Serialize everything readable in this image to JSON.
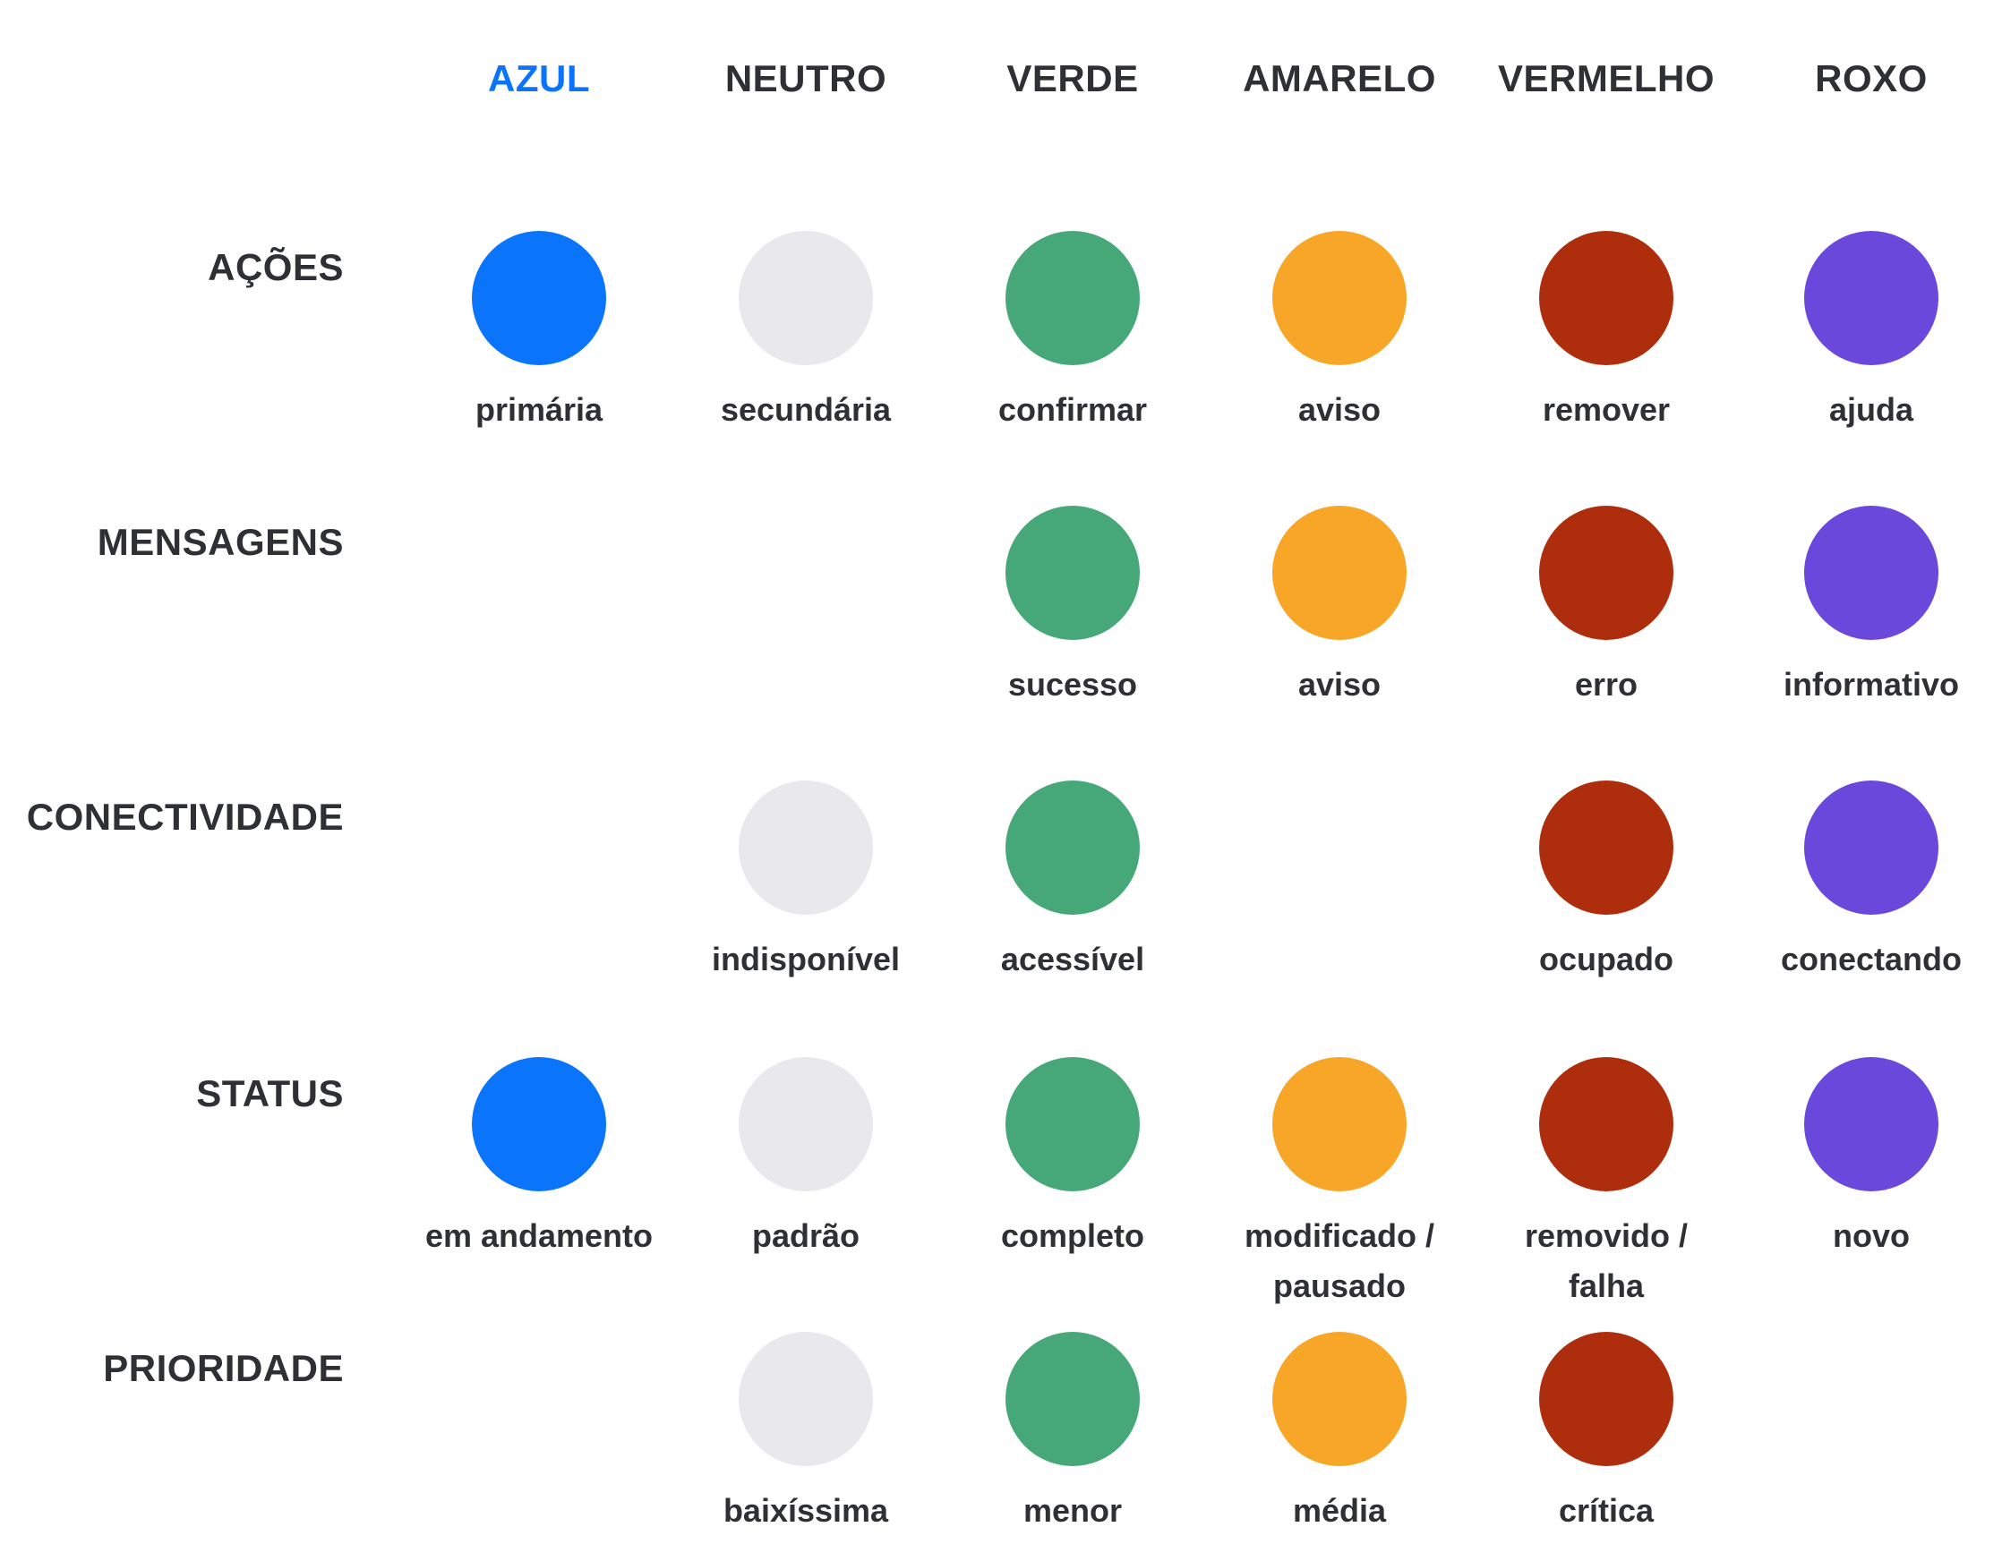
{
  "colors": {
    "azul": "#0a74fa",
    "neutro": "#e9e9ed",
    "verde": "#46a878",
    "amarelo": "#f8a628",
    "vermelho": "#ae2d0d",
    "roxo": "#6b48dc",
    "text": "#2e3033",
    "highlight": "#0a74fa"
  },
  "columns": [
    {
      "key": "azul",
      "label": "AZUL",
      "highlight": true
    },
    {
      "key": "neutro",
      "label": "NEUTRO",
      "highlight": false
    },
    {
      "key": "verde",
      "label": "VERDE",
      "highlight": false
    },
    {
      "key": "amarelo",
      "label": "AMARELO",
      "highlight": false
    },
    {
      "key": "vermelho",
      "label": "VERMELHO",
      "highlight": false
    },
    {
      "key": "roxo",
      "label": "ROXO",
      "highlight": false
    }
  ],
  "rows": [
    {
      "key": "acoes",
      "label": "AÇÕES",
      "cells": {
        "azul": "primária",
        "neutro": "secundária",
        "verde": "confirmar",
        "amarelo": "aviso",
        "vermelho": "remover",
        "roxo": "ajuda"
      }
    },
    {
      "key": "mensagens",
      "label": "MENSAGENS",
      "cells": {
        "verde": "sucesso",
        "amarelo": "aviso",
        "vermelho": "erro",
        "roxo": "informativo"
      }
    },
    {
      "key": "conectividade",
      "label": "CONECTIVIDADE",
      "cells": {
        "neutro": "indisponível",
        "verde": "acessível",
        "vermelho": "ocupado",
        "roxo": "conectando"
      }
    },
    {
      "key": "status",
      "label": "STATUS",
      "cells": {
        "azul": "em andamento",
        "neutro": "padrão",
        "verde": "completo",
        "amarelo": "modificado /\npausado",
        "vermelho": "removido /\nfalha",
        "roxo": "novo"
      }
    },
    {
      "key": "prioridade",
      "label": "PRIORIDADE",
      "cells": {
        "neutro": "baixíssima",
        "verde": "menor",
        "amarelo": "média",
        "vermelho": "crítica"
      }
    }
  ]
}
